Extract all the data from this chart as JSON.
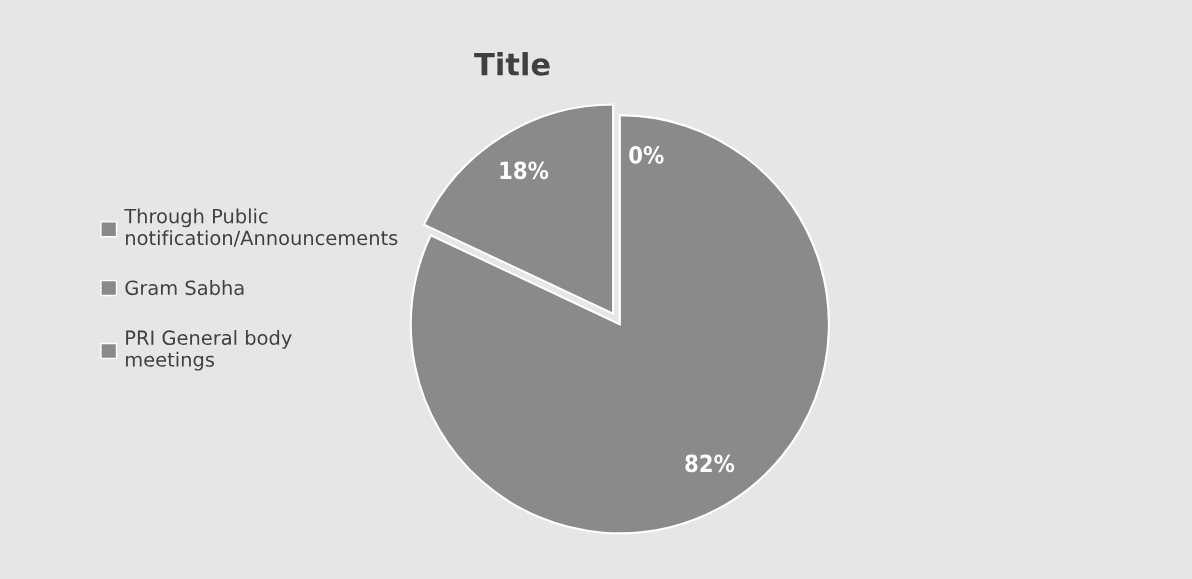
{
  "chart_data": {
    "type": "pie",
    "title": "Title",
    "categories": [
      "Through Public\nnotification/Announcements",
      "Gram Sabha",
      "PRI General body\nmeetings"
    ],
    "values": [
      0,
      82,
      18
    ],
    "colors": [
      "#8a8a8a",
      "#8a8a8a",
      "#8a8a8a"
    ],
    "value_labels": [
      "0%",
      "82%",
      "18%"
    ],
    "legend": "left"
  }
}
